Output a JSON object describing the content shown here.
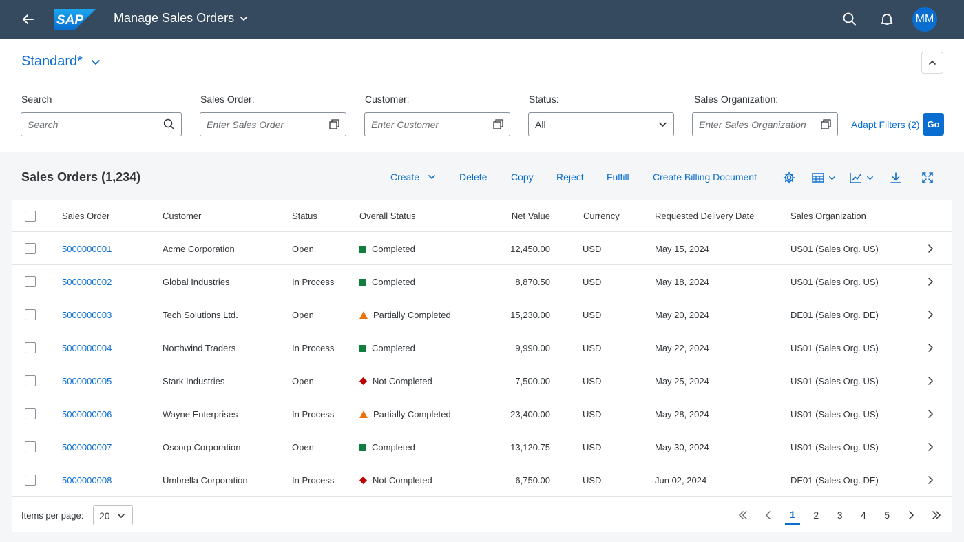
{
  "shell": {
    "logo_text": "SAP",
    "app_title": "Manage Sales Orders",
    "avatar_initials": "MM"
  },
  "filterbar": {
    "variant": "Standard*",
    "fields": {
      "search": {
        "label": "Search",
        "placeholder": "Search"
      },
      "sales_order": {
        "label": "Sales Order:",
        "placeholder": "Enter Sales Order"
      },
      "customer": {
        "label": "Customer:",
        "placeholder": "Enter Customer"
      },
      "status": {
        "label": "Status:",
        "value": "All"
      },
      "sales_org": {
        "label": "Sales Organization:",
        "placeholder": "Enter Sales Organization"
      }
    },
    "adapt_filters": "Adapt Filters (2)",
    "go": "Go"
  },
  "table": {
    "title": "Sales Orders (1,234)",
    "toolbar": {
      "create": "Create",
      "delete": "Delete",
      "copy": "Copy",
      "reject": "Reject",
      "fulfill": "Fulfill",
      "create_billing": "Create Billing Document"
    },
    "columns": {
      "sales_order": "Sales Order",
      "customer": "Customer",
      "status": "Status",
      "overall_status": "Overall Status",
      "net_value": "Net Value",
      "currency": "Currency",
      "delivery_date": "Requested Delivery Date",
      "sales_org": "Sales Organization"
    },
    "rows": [
      {
        "order": "5000000001",
        "customer": "Acme Corporation",
        "status": "Open",
        "overall": "Completed",
        "overall_kind": "success",
        "net": "12,450.00",
        "currency": "USD",
        "date": "May 15, 2024",
        "org": "US01 (Sales Org. US)"
      },
      {
        "order": "5000000002",
        "customer": "Global Industries",
        "status": "In Process",
        "overall": "Completed",
        "overall_kind": "success",
        "net": "8,870.50",
        "currency": "USD",
        "date": "May 18, 2024",
        "org": "US01 (Sales Org. US)"
      },
      {
        "order": "5000000003",
        "customer": "Tech Solutions Ltd.",
        "status": "Open",
        "overall": "Partially Completed",
        "overall_kind": "warning",
        "net": "15,230.00",
        "currency": "USD",
        "date": "May 20, 2024",
        "org": "DE01 (Sales Org. DE)"
      },
      {
        "order": "5000000004",
        "customer": "Northwind Traders",
        "status": "In Process",
        "overall": "Completed",
        "overall_kind": "success",
        "net": "9,990.00",
        "currency": "USD",
        "date": "May 22, 2024",
        "org": "US01 (Sales Org. US)"
      },
      {
        "order": "5000000005",
        "customer": "Stark Industries",
        "status": "Open",
        "overall": "Not Completed",
        "overall_kind": "error",
        "net": "7,500.00",
        "currency": "USD",
        "date": "May 25, 2024",
        "org": "US01 (Sales Org. US)"
      },
      {
        "order": "5000000006",
        "customer": "Wayne Enterprises",
        "status": "In Process",
        "overall": "Partially Completed",
        "overall_kind": "warning",
        "net": "23,400.00",
        "currency": "USD",
        "date": "May 28, 2024",
        "org": "US01 (Sales Org. US)"
      },
      {
        "order": "5000000007",
        "customer": "Oscorp Corporation",
        "status": "Open",
        "overall": "Completed",
        "overall_kind": "success",
        "net": "13,120.75",
        "currency": "USD",
        "date": "May 30, 2024",
        "org": "US01 (Sales Org. US)"
      },
      {
        "order": "5000000008",
        "customer": "Umbrella Corporation",
        "status": "In Process",
        "overall": "Not Completed",
        "overall_kind": "error",
        "net": "6,750.00",
        "currency": "USD",
        "date": "Jun 02, 2024",
        "org": "DE01 (Sales Org. DE)"
      }
    ],
    "footer": {
      "items_per_page_label": "Items per page:",
      "items_per_page": "20",
      "pages": [
        "1",
        "2",
        "3",
        "4",
        "5"
      ],
      "current_page": "1"
    }
  },
  "colors": {
    "shell": "#354a5f",
    "accent": "#0a6ed1",
    "success": "#107e3e",
    "warning": "#e9730c",
    "error": "#bb0000"
  }
}
